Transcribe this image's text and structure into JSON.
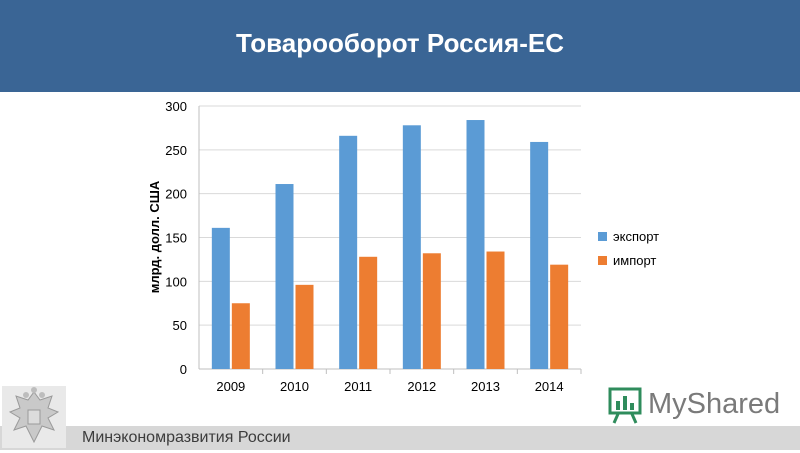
{
  "header": {
    "title": "Товарооборот Россия-ЕС"
  },
  "footer": {
    "ministry": "Минэкономразвития России"
  },
  "watermark": {
    "brand": "MyShared"
  },
  "colors": {
    "header_bg": "#3a6595",
    "export": "#5b9bd5",
    "import": "#ed7d31"
  },
  "icons": {
    "emblem": "coat-of-arms-icon",
    "watermark": "presentation-board-icon"
  },
  "chart_data": {
    "type": "bar",
    "categories": [
      "2009",
      "2010",
      "2011",
      "2012",
      "2013",
      "2014"
    ],
    "series": [
      {
        "name": "экспорт",
        "values": [
          161,
          211,
          266,
          278,
          284,
          259
        ]
      },
      {
        "name": "импорт",
        "values": [
          75,
          96,
          128,
          132,
          134,
          119
        ]
      }
    ],
    "ylabel": "млрд. долл. США",
    "ylim": [
      0,
      300
    ],
    "yticks": [
      0,
      50,
      100,
      150,
      200,
      250,
      300
    ],
    "grid": true,
    "legend": "right"
  }
}
